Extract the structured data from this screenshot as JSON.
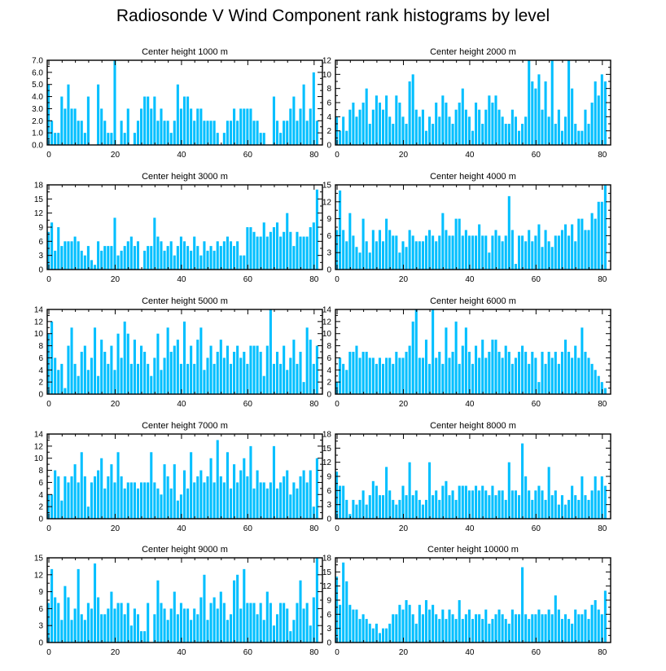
{
  "title": "Radiosonde V Wind Component rank histograms by level",
  "colors": {
    "bar": "#00BFFF",
    "axis": "#000000",
    "background": "#ffffff"
  },
  "chart_data": [
    {
      "type": "bar",
      "title": "Center height 1000 m",
      "ylim": [
        0,
        7
      ],
      "yticks": [
        0,
        1,
        2,
        3,
        4,
        5,
        6,
        7
      ],
      "ytick_labels": [
        "0.0",
        "1.0",
        "2.0",
        "3.0",
        "4.0",
        "5.0",
        "6.0",
        "7.0"
      ],
      "xticks": [
        0,
        20,
        40,
        60,
        80
      ],
      "values": [
        5,
        2,
        1,
        1,
        4,
        3,
        5,
        3,
        3,
        2,
        2,
        1,
        4,
        0,
        0,
        5,
        3,
        2,
        1,
        1,
        7,
        0,
        2,
        1,
        3,
        0,
        1,
        2,
        3,
        4,
        4,
        3,
        4,
        2,
        3,
        2,
        2,
        1,
        2,
        5,
        3,
        4,
        4,
        3,
        2,
        3,
        3,
        2,
        2,
        2,
        2,
        1,
        0,
        1,
        2,
        2,
        3,
        2,
        3,
        3,
        3,
        3,
        2,
        2,
        1,
        1,
        0,
        0,
        4,
        2,
        1,
        2,
        2,
        3,
        4,
        2,
        3,
        5,
        2,
        3,
        6,
        2
      ]
    },
    {
      "type": "bar",
      "title": "Center height 2000 m",
      "ylim": [
        0,
        12
      ],
      "yticks": [
        0,
        2,
        4,
        6,
        8,
        10,
        12
      ],
      "ytick_labels": [
        "0",
        "2",
        "4",
        "6",
        "8",
        "10",
        "12"
      ],
      "xticks": [
        0,
        20,
        40,
        60,
        80
      ],
      "values": [
        4,
        2,
        4,
        2,
        5,
        6,
        4,
        5,
        6,
        8,
        3,
        5,
        7,
        6,
        5,
        7,
        4,
        3,
        7,
        6,
        4,
        3,
        9,
        10,
        5,
        4,
        5,
        2,
        4,
        3,
        6,
        4,
        7,
        6,
        4,
        3,
        5,
        6,
        8,
        5,
        4,
        2,
        6,
        5,
        3,
        5,
        7,
        6,
        7,
        5,
        4,
        3,
        3,
        5,
        4,
        2,
        3,
        4,
        12,
        9,
        8,
        10,
        5,
        9,
        4,
        12,
        3,
        5,
        2,
        4,
        12,
        8,
        3,
        2,
        2,
        5,
        3,
        6,
        9,
        7,
        10,
        9
      ]
    },
    {
      "type": "bar",
      "title": "Center height 3000 m",
      "ylim": [
        0,
        18
      ],
      "yticks": [
        0,
        3,
        6,
        9,
        12,
        15,
        18
      ],
      "ytick_labels": [
        "0",
        "3",
        "6",
        "9",
        "12",
        "15",
        "18"
      ],
      "xticks": [
        0,
        20,
        40,
        60,
        80
      ],
      "values": [
        8,
        10,
        4,
        9,
        5,
        6,
        6,
        6,
        7,
        6,
        4,
        3,
        5,
        2,
        1,
        6,
        4,
        5,
        5,
        5,
        11,
        3,
        4,
        5,
        6,
        7,
        5,
        6,
        0,
        4,
        5,
        5,
        11,
        7,
        6,
        4,
        5,
        6,
        3,
        5,
        7,
        6,
        5,
        4,
        7,
        5,
        3,
        6,
        4,
        5,
        4,
        6,
        5,
        6,
        7,
        6,
        5,
        6,
        3,
        3,
        9,
        9,
        8,
        7,
        7,
        10,
        7,
        8,
        9,
        10,
        7,
        8,
        12,
        8,
        5,
        8,
        7,
        7,
        7,
        9,
        10,
        17
      ]
    },
    {
      "type": "bar",
      "title": "Center height 4000 m",
      "ylim": [
        0,
        15
      ],
      "yticks": [
        0,
        3,
        6,
        9,
        12,
        15
      ],
      "ytick_labels": [
        "0",
        "3",
        "6",
        "9",
        "12",
        "15"
      ],
      "xticks": [
        0,
        20,
        40,
        60,
        80
      ],
      "values": [
        7,
        14,
        7,
        5,
        10,
        6,
        4,
        3,
        9,
        5,
        3,
        7,
        5,
        7,
        5,
        9,
        7,
        6,
        6,
        3,
        5,
        4,
        7,
        6,
        5,
        5,
        5,
        6,
        7,
        6,
        5,
        6,
        10,
        7,
        6,
        6,
        9,
        9,
        6,
        7,
        6,
        6,
        6,
        8,
        6,
        6,
        3,
        6,
        7,
        6,
        5,
        6,
        13,
        7,
        1,
        6,
        6,
        5,
        7,
        5,
        6,
        8,
        4,
        7,
        5,
        4,
        6,
        6,
        7,
        8,
        6,
        8,
        5,
        9,
        9,
        7,
        7,
        10,
        9,
        12,
        12,
        15
      ]
    },
    {
      "type": "bar",
      "title": "Center height 5000 m",
      "ylim": [
        0,
        14
      ],
      "yticks": [
        0,
        2,
        4,
        6,
        8,
        10,
        12,
        14
      ],
      "ytick_labels": [
        "0",
        "2",
        "4",
        "6",
        "8",
        "10",
        "12",
        "14"
      ],
      "xticks": [
        0,
        20,
        40,
        60,
        80
      ],
      "values": [
        10,
        12,
        6,
        4,
        5,
        1,
        8,
        11,
        5,
        3,
        7,
        8,
        4,
        6,
        11,
        3,
        9,
        7,
        5,
        8,
        4,
        10,
        6,
        12,
        10,
        5,
        9,
        5,
        8,
        7,
        5,
        3,
        6,
        10,
        4,
        6,
        11,
        7,
        8,
        9,
        5,
        12,
        5,
        8,
        5,
        9,
        11,
        4,
        6,
        8,
        5,
        7,
        9,
        6,
        8,
        5,
        7,
        8,
        6,
        7,
        5,
        8,
        8,
        8,
        7,
        3,
        8,
        14,
        5,
        7,
        5,
        8,
        4,
        6,
        9,
        5,
        7,
        2,
        11,
        9,
        5,
        8
      ]
    },
    {
      "type": "bar",
      "title": "Center height 6000 m",
      "ylim": [
        0,
        14
      ],
      "yticks": [
        0,
        2,
        4,
        6,
        8,
        10,
        12,
        14
      ],
      "ytick_labels": [
        "0",
        "2",
        "4",
        "6",
        "8",
        "10",
        "12",
        "14"
      ],
      "xticks": [
        0,
        20,
        40,
        60,
        80
      ],
      "values": [
        2,
        6,
        5,
        4,
        7,
        7,
        8,
        6,
        7,
        7,
        6,
        6,
        5,
        6,
        5,
        6,
        6,
        5,
        7,
        6,
        6,
        7,
        8,
        12,
        14,
        6,
        6,
        9,
        5,
        14,
        6,
        7,
        5,
        11,
        6,
        7,
        12,
        5,
        8,
        11,
        7,
        5,
        8,
        6,
        9,
        6,
        7,
        9,
        9,
        7,
        6,
        8,
        7,
        5,
        6,
        7,
        8,
        7,
        5,
        7,
        6,
        2,
        7,
        5,
        7,
        6,
        7,
        5,
        7,
        9,
        7,
        6,
        8,
        6,
        11,
        7,
        6,
        5,
        4,
        3,
        2,
        1
      ]
    },
    {
      "type": "bar",
      "title": "Center height 7000 m",
      "ylim": [
        0,
        14
      ],
      "yticks": [
        0,
        2,
        4,
        6,
        8,
        10,
        12,
        14
      ],
      "ytick_labels": [
        "0",
        "2",
        "4",
        "6",
        "8",
        "10",
        "12",
        "14"
      ],
      "xticks": [
        0,
        20,
        40,
        60,
        80
      ],
      "values": [
        4,
        4,
        8,
        7,
        3,
        7,
        6,
        7,
        9,
        6,
        11,
        7,
        2,
        6,
        7,
        8,
        10,
        5,
        7,
        9,
        6,
        11,
        7,
        5,
        6,
        6,
        6,
        5,
        6,
        6,
        6,
        11,
        6,
        5,
        4,
        9,
        7,
        5,
        9,
        3,
        4,
        8,
        5,
        11,
        6,
        7,
        8,
        6,
        7,
        10,
        6,
        13,
        7,
        6,
        11,
        5,
        9,
        6,
        8,
        10,
        7,
        12,
        5,
        8,
        6,
        6,
        5,
        6,
        12,
        5,
        6,
        7,
        8,
        4,
        6,
        5,
        7,
        8,
        6,
        8,
        2,
        10
      ]
    },
    {
      "type": "bar",
      "title": "Center height 8000 m",
      "ylim": [
        0,
        18
      ],
      "yticks": [
        0,
        3,
        6,
        9,
        12,
        15,
        18
      ],
      "ytick_labels": [
        "0",
        "3",
        "6",
        "9",
        "12",
        "15",
        "18"
      ],
      "xticks": [
        0,
        20,
        40,
        60,
        80
      ],
      "values": [
        10,
        7,
        7,
        4,
        1,
        4,
        3,
        4,
        6,
        3,
        5,
        8,
        7,
        5,
        5,
        11,
        6,
        4,
        3,
        4,
        7,
        5,
        12,
        5,
        6,
        4,
        3,
        4,
        12,
        5,
        6,
        4,
        7,
        8,
        5,
        6,
        4,
        7,
        7,
        7,
        6,
        6,
        7,
        6,
        7,
        6,
        5,
        7,
        5,
        6,
        6,
        4,
        12,
        6,
        6,
        5,
        16,
        9,
        6,
        4,
        6,
        7,
        6,
        4,
        11,
        5,
        6,
        3,
        5,
        3,
        4,
        7,
        5,
        4,
        9,
        5,
        4,
        6,
        9,
        6,
        9,
        7
      ]
    },
    {
      "type": "bar",
      "title": "Center height 9000 m",
      "ylim": [
        0,
        15
      ],
      "yticks": [
        0,
        3,
        6,
        9,
        12,
        15
      ],
      "ytick_labels": [
        "0",
        "3",
        "6",
        "9",
        "12",
        "15"
      ],
      "xticks": [
        0,
        20,
        40,
        60,
        80
      ],
      "values": [
        7,
        13,
        8,
        7,
        4,
        10,
        8,
        4,
        6,
        13,
        5,
        4,
        7,
        6,
        14,
        8,
        5,
        5,
        6,
        9,
        6,
        7,
        7,
        5,
        7,
        3,
        6,
        5,
        2,
        2,
        7,
        0,
        5,
        11,
        7,
        6,
        4,
        6,
        9,
        5,
        7,
        6,
        6,
        4,
        6,
        5,
        8,
        12,
        4,
        7,
        8,
        6,
        9,
        7,
        4,
        5,
        11,
        12,
        6,
        13,
        7,
        7,
        7,
        5,
        7,
        4,
        9,
        7,
        3,
        5,
        7,
        7,
        6,
        2,
        4,
        7,
        11,
        6,
        7,
        3,
        8,
        15
      ]
    },
    {
      "type": "bar",
      "title": "Center height 10000 m",
      "ylim": [
        0,
        18
      ],
      "yticks": [
        0,
        3,
        6,
        9,
        12,
        15,
        18
      ],
      "ytick_labels": [
        "0",
        "3",
        "6",
        "9",
        "12",
        "15",
        "18"
      ],
      "xticks": [
        0,
        20,
        40,
        60,
        80
      ],
      "values": [
        14,
        8,
        17,
        13,
        8,
        7,
        7,
        5,
        6,
        5,
        4,
        3,
        4,
        2,
        3,
        3,
        4,
        6,
        6,
        8,
        7,
        9,
        8,
        6,
        4,
        8,
        6,
        9,
        7,
        8,
        6,
        5,
        7,
        5,
        7,
        6,
        5,
        9,
        5,
        6,
        7,
        5,
        6,
        6,
        5,
        7,
        4,
        5,
        6,
        7,
        6,
        5,
        4,
        7,
        6,
        6,
        16,
        6,
        5,
        6,
        6,
        7,
        6,
        6,
        7,
        6,
        10,
        7,
        5,
        6,
        5,
        4,
        7,
        6,
        6,
        7,
        5,
        8,
        9,
        7,
        6,
        11
      ]
    }
  ]
}
